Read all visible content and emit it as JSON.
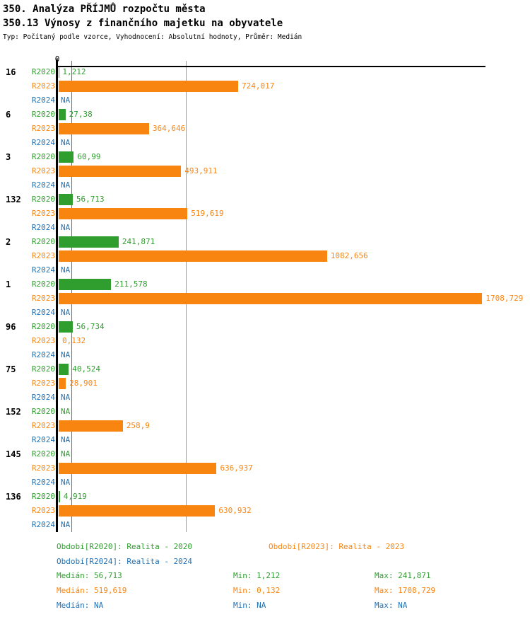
{
  "header": {
    "title": "350. Analýza PŘÍJMŮ rozpočtu města",
    "subtitle": "350.13 Výnosy z finančního majetku na obyvatele",
    "type_line": "Typ: Počítaný podle vzorce, Vyhodnocení: Absolutní hodnoty, Průměr: Medián"
  },
  "colors": {
    "green": "#2f9e2f",
    "orange": "#f98511",
    "blue": "#2171b5",
    "axis": "#000000"
  },
  "chart_data": {
    "type": "bar",
    "orientation": "horizontal",
    "x_axis": {
      "zero_label": "0",
      "max": 1708.729,
      "grid": false
    },
    "series": [
      "R2020",
      "R2023",
      "R2024"
    ],
    "series_colors": {
      "R2020": "#2f9e2f",
      "R2023": "#f98511",
      "R2024": "#2171b5"
    },
    "median_lines": [
      {
        "series": "R2020",
        "value": 56.713
      },
      {
        "series": "R2023",
        "value": 519.619
      }
    ],
    "groups": [
      {
        "category": "16",
        "values": [
          {
            "series": "R2020",
            "value": 1.212,
            "label": "1,212"
          },
          {
            "series": "R2023",
            "value": 724.017,
            "label": "724,017"
          },
          {
            "series": "R2024",
            "value": null,
            "label": "NA"
          }
        ]
      },
      {
        "category": "6",
        "values": [
          {
            "series": "R2020",
            "value": 27.38,
            "label": "27,38"
          },
          {
            "series": "R2023",
            "value": 364.646,
            "label": "364,646"
          },
          {
            "series": "R2024",
            "value": null,
            "label": "NA"
          }
        ]
      },
      {
        "category": "3",
        "values": [
          {
            "series": "R2020",
            "value": 60.99,
            "label": "60,99"
          },
          {
            "series": "R2023",
            "value": 493.911,
            "label": "493,911"
          },
          {
            "series": "R2024",
            "value": null,
            "label": "NA"
          }
        ]
      },
      {
        "category": "132",
        "values": [
          {
            "series": "R2020",
            "value": 56.713,
            "label": "56,713"
          },
          {
            "series": "R2023",
            "value": 519.619,
            "label": "519,619"
          },
          {
            "series": "R2024",
            "value": null,
            "label": "NA"
          }
        ]
      },
      {
        "category": "2",
        "values": [
          {
            "series": "R2020",
            "value": 241.871,
            "label": "241,871"
          },
          {
            "series": "R2023",
            "value": 1082.656,
            "label": "1082,656"
          },
          {
            "series": "R2024",
            "value": null,
            "label": "NA"
          }
        ]
      },
      {
        "category": "1",
        "values": [
          {
            "series": "R2020",
            "value": 211.578,
            "label": "211,578"
          },
          {
            "series": "R2023",
            "value": 1708.729,
            "label": "1708,729"
          },
          {
            "series": "R2024",
            "value": null,
            "label": "NA"
          }
        ]
      },
      {
        "category": "96",
        "values": [
          {
            "series": "R2020",
            "value": 56.734,
            "label": "56,734"
          },
          {
            "series": "R2023",
            "value": 0.132,
            "label": "0,132"
          },
          {
            "series": "R2024",
            "value": null,
            "label": "NA"
          }
        ]
      },
      {
        "category": "75",
        "values": [
          {
            "series": "R2020",
            "value": 40.524,
            "label": "40,524"
          },
          {
            "series": "R2023",
            "value": 28.901,
            "label": "28,901"
          },
          {
            "series": "R2024",
            "value": null,
            "label": "NA"
          }
        ]
      },
      {
        "category": "152",
        "values": [
          {
            "series": "R2020",
            "value": null,
            "label": "NA"
          },
          {
            "series": "R2023",
            "value": 258.9,
            "label": "258,9"
          },
          {
            "series": "R2024",
            "value": null,
            "label": "NA"
          }
        ]
      },
      {
        "category": "145",
        "values": [
          {
            "series": "R2020",
            "value": null,
            "label": "NA"
          },
          {
            "series": "R2023",
            "value": 636.937,
            "label": "636,937"
          },
          {
            "series": "R2024",
            "value": null,
            "label": "NA"
          }
        ]
      },
      {
        "category": "136",
        "values": [
          {
            "series": "R2020",
            "value": 4.919,
            "label": "4,919"
          },
          {
            "series": "R2023",
            "value": 630.932,
            "label": "630,932"
          },
          {
            "series": "R2024",
            "value": null,
            "label": "NA"
          }
        ]
      }
    ]
  },
  "legend": {
    "r2020": "Období[R2020]: Realita - 2020",
    "r2023": "Období[R2023]: Realita - 2023",
    "r2024": "Období[R2024]: Realita - 2024"
  },
  "stats": [
    {
      "series": "R2020",
      "median": "Medián: 56,713",
      "min": "Min: 1,212",
      "max": "Max: 241,871"
    },
    {
      "series": "R2023",
      "median": "Medián: 519,619",
      "min": "Min: 0,132",
      "max": "Max: 1708,729"
    },
    {
      "series": "R2024",
      "median": "Medián: NA",
      "min": "Min: NA",
      "max": "Max: NA"
    }
  ]
}
